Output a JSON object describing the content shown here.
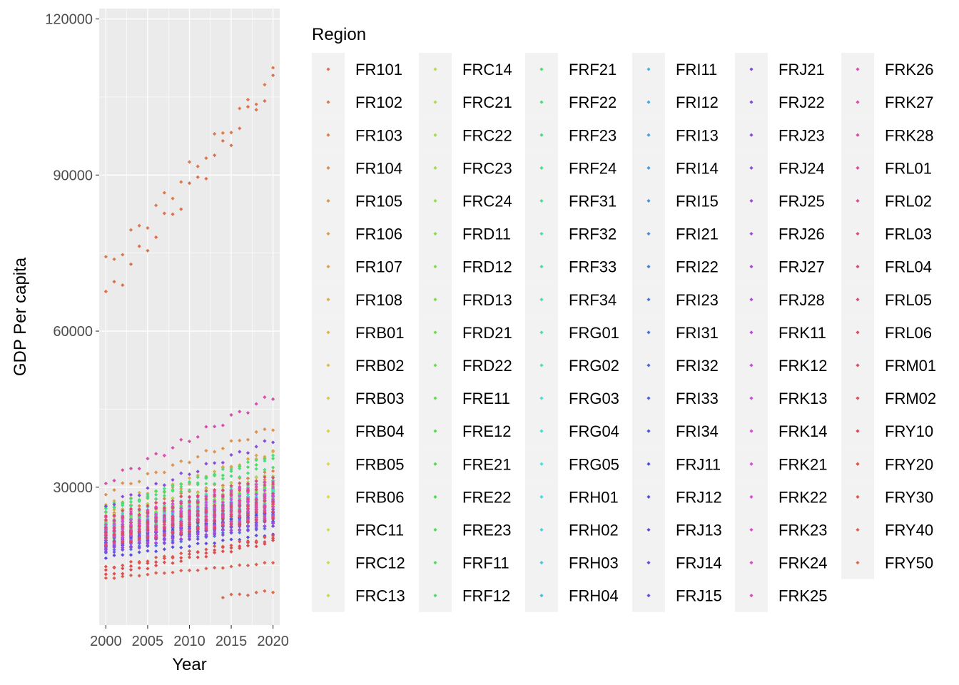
{
  "chart_data": {
    "type": "scatter",
    "title": "",
    "xlabel": "Year",
    "ylabel": "GDP Per capita",
    "xlim": [
      1999.2,
      2020.8
    ],
    "ylim": [
      3500,
      122000
    ],
    "x_ticks": [
      2000,
      2005,
      2010,
      2015,
      2020
    ],
    "x_tick_labels": [
      "2000",
      "2005",
      "2010",
      "2015",
      "2020"
    ],
    "y_ticks": [
      30000,
      60000,
      90000,
      120000
    ],
    "y_tick_labels": [
      "30000",
      "60000",
      "90000",
      "120000"
    ],
    "grid": true,
    "legend": {
      "title": "Region",
      "placement": "right",
      "columns": 6,
      "rows": 17,
      "entries": [
        "FR101",
        "FR102",
        "FR103",
        "FR104",
        "FR105",
        "FR106",
        "FR107",
        "FR108",
        "FRB01",
        "FRB02",
        "FRB03",
        "FRB04",
        "FRB05",
        "FRB06",
        "FRC11",
        "FRC12",
        "FRC13",
        "FRC14",
        "FRC21",
        "FRC22",
        "FRC23",
        "FRC24",
        "FRD11",
        "FRD12",
        "FRD13",
        "FRD21",
        "FRD22",
        "FRE11",
        "FRE12",
        "FRE21",
        "FRE22",
        "FRE23",
        "FRF11",
        "FRF12",
        "FRF21",
        "FRF22",
        "FRF23",
        "FRF24",
        "FRF31",
        "FRF32",
        "FRF33",
        "FRF34",
        "FRG01",
        "FRG02",
        "FRG03",
        "FRG04",
        "FRG05",
        "FRH01",
        "FRH02",
        "FRH03",
        "FRH04",
        "FRI11",
        "FRI12",
        "FRI13",
        "FRI14",
        "FRI15",
        "FRI21",
        "FRI22",
        "FRI23",
        "FRI31",
        "FRI32",
        "FRI33",
        "FRI34",
        "FRJ11",
        "FRJ12",
        "FRJ13",
        "FRJ14",
        "FRJ15",
        "FRJ21",
        "FRJ22",
        "FRJ23",
        "FRJ24",
        "FRJ25",
        "FRJ26",
        "FRJ27",
        "FRJ28",
        "FRK11",
        "FRK12",
        "FRK13",
        "FRK14",
        "FRK21",
        "FRK22",
        "FRK23",
        "FRK24",
        "FRK25",
        "FRK26",
        "FRK27",
        "FRK28",
        "FRL01",
        "FRL02",
        "FRL03",
        "FRL04",
        "FRL05",
        "FRL06",
        "FRM01",
        "FRM02",
        "FRY10",
        "FRY20",
        "FRY30",
        "FRY40",
        "FRY50"
      ]
    },
    "series_note": "Per-region points cover years 2000-2020; start/end/growth summarise each series",
    "series": [
      {
        "name": "FR101",
        "start": 66500,
        "end": 107500,
        "growth": 2000
      },
      {
        "name": "FR102",
        "start": 72500,
        "end": 109000,
        "growth": 2000
      },
      {
        "name": "FR103",
        "start": 25000,
        "end": 33000,
        "growth": 400
      },
      {
        "name": "FR104",
        "start": 23000,
        "end": 31500,
        "growth": 420
      },
      {
        "name": "FR105",
        "start": 29000,
        "end": 41500,
        "growth": 600
      },
      {
        "name": "FR106",
        "start": 22500,
        "end": 30500,
        "growth": 400
      },
      {
        "name": "FR107",
        "start": 24500,
        "end": 37000,
        "growth": 620
      },
      {
        "name": "FR108",
        "start": 26500,
        "end": 36500,
        "growth": 500
      },
      {
        "name": "FRB01",
        "start": 22000,
        "end": 28500,
        "growth": 320
      },
      {
        "name": "FRB02",
        "start": 21500,
        "end": 27500,
        "growth": 300
      },
      {
        "name": "FRB03",
        "start": 20500,
        "end": 26500,
        "growth": 300
      },
      {
        "name": "FRB04",
        "start": 23500,
        "end": 30500,
        "growth": 350
      },
      {
        "name": "FRB05",
        "start": 22500,
        "end": 29500,
        "growth": 350
      },
      {
        "name": "FRB06",
        "start": 22000,
        "end": 29000,
        "growth": 350
      },
      {
        "name": "FRC11",
        "start": 23500,
        "end": 30500,
        "growth": 350
      },
      {
        "name": "FRC12",
        "start": 21000,
        "end": 27000,
        "growth": 300
      },
      {
        "name": "FRC13",
        "start": 22000,
        "end": 28000,
        "growth": 300
      },
      {
        "name": "FRC14",
        "start": 20500,
        "end": 26500,
        "growth": 300
      },
      {
        "name": "FRC21",
        "start": 23000,
        "end": 30000,
        "growth": 350
      },
      {
        "name": "FRC22",
        "start": 24500,
        "end": 32500,
        "growth": 400
      },
      {
        "name": "FRC23",
        "start": 22000,
        "end": 28500,
        "growth": 320
      },
      {
        "name": "FRC24",
        "start": 22500,
        "end": 29500,
        "growth": 350
      },
      {
        "name": "FRD11",
        "start": 23000,
        "end": 30000,
        "growth": 350
      },
      {
        "name": "FRD12",
        "start": 21000,
        "end": 27500,
        "growth": 320
      },
      {
        "name": "FRD13",
        "start": 20500,
        "end": 27000,
        "growth": 320
      },
      {
        "name": "FRD21",
        "start": 22000,
        "end": 28500,
        "growth": 320
      },
      {
        "name": "FRD22",
        "start": 21500,
        "end": 28000,
        "growth": 320
      },
      {
        "name": "FRE11",
        "start": 23000,
        "end": 30500,
        "growth": 370
      },
      {
        "name": "FRE12",
        "start": 19500,
        "end": 25000,
        "growth": 270
      },
      {
        "name": "FRE21",
        "start": 21500,
        "end": 28000,
        "growth": 320
      },
      {
        "name": "FRE22",
        "start": 20500,
        "end": 26500,
        "growth": 300
      },
      {
        "name": "FRE23",
        "start": 20000,
        "end": 26000,
        "growth": 300
      },
      {
        "name": "FRF11",
        "start": 26000,
        "end": 35500,
        "growth": 470
      },
      {
        "name": "FRF12",
        "start": 22500,
        "end": 29500,
        "growth": 350
      },
      {
        "name": "FRF21",
        "start": 23000,
        "end": 30000,
        "growth": 350
      },
      {
        "name": "FRF22",
        "start": 25500,
        "end": 34000,
        "growth": 420
      },
      {
        "name": "FRF23",
        "start": 26000,
        "end": 36000,
        "growth": 500
      },
      {
        "name": "FRF24",
        "start": 21000,
        "end": 27000,
        "growth": 300
      },
      {
        "name": "FRF31",
        "start": 22500,
        "end": 29000,
        "growth": 320
      },
      {
        "name": "FRF32",
        "start": 21000,
        "end": 27500,
        "growth": 320
      },
      {
        "name": "FRF33",
        "start": 21500,
        "end": 28500,
        "growth": 350
      },
      {
        "name": "FRF34",
        "start": 23500,
        "end": 31000,
        "growth": 370
      },
      {
        "name": "FRG01",
        "start": 24000,
        "end": 31500,
        "growth": 370
      },
      {
        "name": "FRG02",
        "start": 22000,
        "end": 29000,
        "growth": 350
      },
      {
        "name": "FRG03",
        "start": 21500,
        "end": 28000,
        "growth": 320
      },
      {
        "name": "FRG04",
        "start": 20500,
        "end": 26500,
        "growth": 300
      },
      {
        "name": "FRG05",
        "start": 22000,
        "end": 28500,
        "growth": 320
      },
      {
        "name": "FRH01",
        "start": 22500,
        "end": 29500,
        "growth": 350
      },
      {
        "name": "FRH02",
        "start": 20500,
        "end": 26500,
        "growth": 300
      },
      {
        "name": "FRH03",
        "start": 21000,
        "end": 27000,
        "growth": 300
      },
      {
        "name": "FRH04",
        "start": 22000,
        "end": 28500,
        "growth": 320
      },
      {
        "name": "FRI11",
        "start": 22000,
        "end": 28000,
        "growth": 300
      },
      {
        "name": "FRI12",
        "start": 21000,
        "end": 27000,
        "growth": 300
      },
      {
        "name": "FRI13",
        "start": 18500,
        "end": 24000,
        "growth": 270
      },
      {
        "name": "FRI14",
        "start": 19000,
        "end": 24500,
        "growth": 270
      },
      {
        "name": "FRI15",
        "start": 21500,
        "end": 27500,
        "growth": 300
      },
      {
        "name": "FRI21",
        "start": 20500,
        "end": 26500,
        "growth": 300
      },
      {
        "name": "FRI22",
        "start": 19000,
        "end": 24000,
        "growth": 250
      },
      {
        "name": "FRI23",
        "start": 17500,
        "end": 22500,
        "growth": 250
      },
      {
        "name": "FRI31",
        "start": 20000,
        "end": 25500,
        "growth": 270
      },
      {
        "name": "FRI32",
        "start": 20500,
        "end": 26500,
        "growth": 300
      },
      {
        "name": "FRI33",
        "start": 19500,
        "end": 25000,
        "growth": 270
      },
      {
        "name": "FRI34",
        "start": 18500,
        "end": 23500,
        "growth": 250
      },
      {
        "name": "FRJ11",
        "start": 19500,
        "end": 25000,
        "growth": 270
      },
      {
        "name": "FRJ12",
        "start": 20000,
        "end": 25500,
        "growth": 270
      },
      {
        "name": "FRJ13",
        "start": 16500,
        "end": 21000,
        "growth": 220
      },
      {
        "name": "FRJ14",
        "start": 18000,
        "end": 23000,
        "growth": 250
      },
      {
        "name": "FRJ15",
        "start": 18500,
        "end": 24000,
        "growth": 270
      },
      {
        "name": "FRJ21",
        "start": 19500,
        "end": 25000,
        "growth": 270
      },
      {
        "name": "FRJ22",
        "start": 17500,
        "end": 22500,
        "growth": 250
      },
      {
        "name": "FRJ23",
        "start": 26500,
        "end": 39000,
        "growth": 620
      },
      {
        "name": "FRJ24",
        "start": 18500,
        "end": 23500,
        "growth": 250
      },
      {
        "name": "FRJ25",
        "start": 20000,
        "end": 26000,
        "growth": 300
      },
      {
        "name": "FRJ26",
        "start": 18000,
        "end": 23000,
        "growth": 250
      },
      {
        "name": "FRJ27",
        "start": 19000,
        "end": 24500,
        "growth": 270
      },
      {
        "name": "FRJ28",
        "start": 20500,
        "end": 26500,
        "growth": 300
      },
      {
        "name": "FRK11",
        "start": 21500,
        "end": 27500,
        "growth": 300
      },
      {
        "name": "FRK12",
        "start": 22000,
        "end": 28500,
        "growth": 320
      },
      {
        "name": "FRK13",
        "start": 19000,
        "end": 24500,
        "growth": 270
      },
      {
        "name": "FRK14",
        "start": 22500,
        "end": 29000,
        "growth": 320
      },
      {
        "name": "FRK21",
        "start": 23000,
        "end": 30000,
        "growth": 350
      },
      {
        "name": "FRK22",
        "start": 20000,
        "end": 26000,
        "growth": 300
      },
      {
        "name": "FRK23",
        "start": 24000,
        "end": 31500,
        "growth": 370
      },
      {
        "name": "FRK24",
        "start": 21500,
        "end": 28000,
        "growth": 320
      },
      {
        "name": "FRK25",
        "start": 23500,
        "end": 31000,
        "growth": 370
      },
      {
        "name": "FRK26",
        "start": 31000,
        "end": 47500,
        "growth": 820
      },
      {
        "name": "FRK27",
        "start": 20500,
        "end": 26500,
        "growth": 300
      },
      {
        "name": "FRK28",
        "start": 19000,
        "end": 24500,
        "growth": 270
      },
      {
        "name": "FRL01",
        "start": 21000,
        "end": 27000,
        "growth": 300
      },
      {
        "name": "FRL02",
        "start": 20500,
        "end": 26500,
        "growth": 300
      },
      {
        "name": "FRL03",
        "start": 22000,
        "end": 28500,
        "growth": 320
      },
      {
        "name": "FRL04",
        "start": 23500,
        "end": 30500,
        "growth": 350
      },
      {
        "name": "FRL05",
        "start": 24500,
        "end": 32000,
        "growth": 370
      },
      {
        "name": "FRL06",
        "start": 21500,
        "end": 27500,
        "growth": 300
      },
      {
        "name": "FRM01",
        "start": 20500,
        "end": 25500,
        "growth": 250
      },
      {
        "name": "FRM02",
        "start": 19000,
        "end": 24000,
        "growth": 250
      },
      {
        "name": "FRY10",
        "start": 14000,
        "end": 20000,
        "growth": 300
      },
      {
        "name": "FRY20",
        "start": 13000,
        "end": 19500,
        "growth": 320
      },
      {
        "name": "FRY30",
        "start": 14500,
        "end": 20500,
        "growth": 300
      },
      {
        "name": "FRY40",
        "start": 12500,
        "end": 15500,
        "growth": 150
      },
      {
        "name": "FRY50",
        "start": 9000,
        "end": 10000,
        "growth": 300,
        "first_year": 2014
      }
    ]
  }
}
